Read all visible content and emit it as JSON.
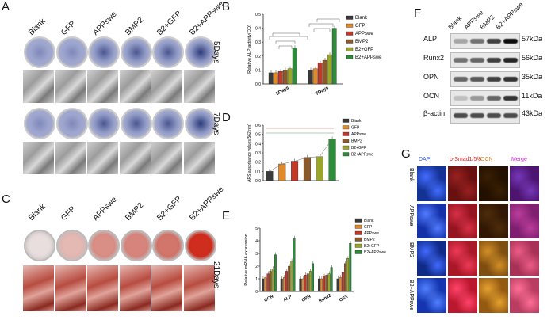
{
  "panels": {
    "A": {
      "label": "A",
      "columns": [
        "Blank",
        "GFP",
        "APPswe",
        "BMP2",
        "B2+GFP",
        "B2+APPswe"
      ],
      "rows": [
        "5Days",
        "7Days"
      ]
    },
    "B": {
      "label": "B",
      "chart_data": {
        "type": "bar",
        "ylabel": "Relative ALP activity(OD)",
        "categories": [
          "5Days",
          "7Days"
        ],
        "ylim": [
          0,
          0.5
        ],
        "yticks": [
          "0.0",
          "0.1",
          "0.2",
          "0.3",
          "0.4",
          "0.5"
        ],
        "series": [
          {
            "name": "Blank",
            "color": "#3a3a3a",
            "values": [
              0.08,
              0.1
            ]
          },
          {
            "name": "GFP",
            "color": "#e08a2a",
            "values": [
              0.08,
              0.11
            ]
          },
          {
            "name": "APPswe",
            "color": "#c0392b",
            "values": [
              0.09,
              0.15
            ]
          },
          {
            "name": "BMP2",
            "color": "#8b5a2b",
            "values": [
              0.1,
              0.17
            ]
          },
          {
            "name": "B2+GFP",
            "color": "#9aa62a",
            "values": [
              0.11,
              0.21
            ]
          },
          {
            "name": "B2+APPswe",
            "color": "#2e8b3a",
            "values": [
              0.26,
              0.4
            ]
          }
        ]
      }
    },
    "C": {
      "label": "C",
      "columns": [
        "Blank",
        "GFP",
        "APPswe",
        "BMP2",
        "B2+GFP",
        "B2+APPswe"
      ],
      "rows": [
        "21Days"
      ]
    },
    "D": {
      "label": "D",
      "chart_data": {
        "type": "bar",
        "ylabel": "ARS absorbance values(562 nm)",
        "categories": [
          "Blank",
          "GFP",
          "APPswe",
          "BMP2",
          "B2+GFP",
          "B2+APPswe"
        ],
        "ylim": [
          0,
          0.6
        ],
        "yticks": [
          "0.0",
          "0.1",
          "0.2",
          "0.3",
          "0.4",
          "0.5",
          "0.6"
        ],
        "values": [
          0.1,
          0.18,
          0.21,
          0.25,
          0.26,
          0.45
        ],
        "colors": [
          "#3a3a3a",
          "#e08a2a",
          "#c0392b",
          "#8b5a2b",
          "#9aa62a",
          "#2e8b3a"
        ],
        "legend": [
          "Blank",
          "GFP",
          "APPswe",
          "BMP2",
          "B2+GFP",
          "B2+APPswe"
        ]
      }
    },
    "E": {
      "label": "E",
      "chart_data": {
        "type": "bar",
        "ylabel": "Relative mRNA expression",
        "categories": [
          "OCN",
          "ALP",
          "OPN",
          "Runx2",
          "OSX"
        ],
        "ylim": [
          0,
          5
        ],
        "yticks": [
          "0",
          "1",
          "2",
          "3",
          "4",
          "5"
        ],
        "series": [
          {
            "name": "Blank",
            "color": "#3a3a3a",
            "values": [
              1.0,
              1.0,
              1.0,
              1.0,
              1.0
            ]
          },
          {
            "name": "GFP",
            "color": "#e08a2a",
            "values": [
              1.1,
              1.1,
              1.0,
              1.0,
              1.1
            ]
          },
          {
            "name": "APPswe",
            "color": "#c0392b",
            "values": [
              1.4,
              1.6,
              1.3,
              1.2,
              1.5
            ]
          },
          {
            "name": "BMP2",
            "color": "#8b5a2b",
            "values": [
              1.6,
              2.0,
              1.4,
              1.3,
              2.2
            ]
          },
          {
            "name": "B2+GFP",
            "color": "#9aa62a",
            "values": [
              1.8,
              2.4,
              1.6,
              1.4,
              2.6
            ]
          },
          {
            "name": "B2+APPswe",
            "color": "#2e8b3a",
            "values": [
              2.9,
              4.2,
              2.2,
              1.9,
              3.8
            ]
          }
        ]
      }
    },
    "F": {
      "label": "F",
      "columns": [
        "Blank",
        "APPswe",
        "BMP2",
        "B2+APPswe"
      ],
      "bands": [
        {
          "name": "ALP",
          "kda": "57kDa"
        },
        {
          "name": "Runx2",
          "kda": "56kDa"
        },
        {
          "name": "OPN",
          "kda": "35kDa"
        },
        {
          "name": "OCN",
          "kda": "11kDa"
        },
        {
          "name": "β-actin",
          "kda": "43kDa"
        }
      ]
    },
    "G": {
      "label": "G",
      "columns": [
        {
          "name": "DAPI",
          "color": "#3355ff"
        },
        {
          "name": "p-Smad1/5/8",
          "color": "#e02020"
        },
        {
          "name": "OCN",
          "color": "#d8881e"
        },
        {
          "name": "Merge",
          "color": "#d020d0"
        }
      ],
      "rows": [
        "Blank",
        "APPswe",
        "BMP2",
        "B2+APPswe"
      ]
    }
  }
}
